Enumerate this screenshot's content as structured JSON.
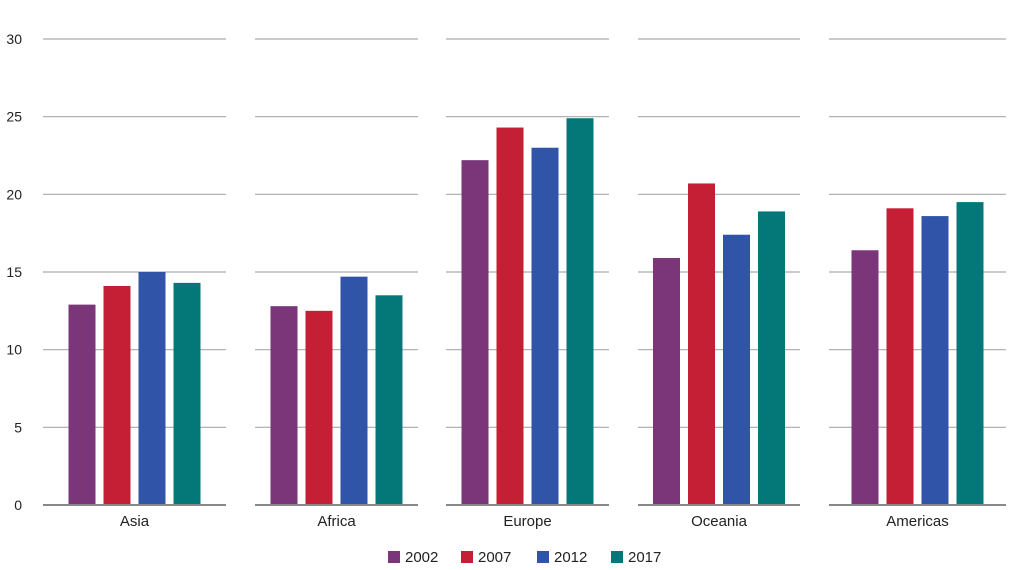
{
  "chart_data": {
    "type": "bar",
    "title": "",
    "xlabel": "",
    "ylabel": "",
    "ylim": [
      0,
      30
    ],
    "yticks": [
      0,
      5,
      10,
      15,
      20,
      25,
      30
    ],
    "grid": true,
    "legend_position": "bottom-center",
    "categories": [
      "Asia",
      "Africa",
      "Europe",
      "Oceania",
      "Americas"
    ],
    "series": [
      {
        "name": "2002",
        "color": "#7b3679",
        "values": [
          12.9,
          12.8,
          22.2,
          15.9,
          16.4
        ]
      },
      {
        "name": "2007",
        "color": "#c41f35",
        "values": [
          14.1,
          12.5,
          24.3,
          20.7,
          19.1
        ]
      },
      {
        "name": "2012",
        "color": "#3054a7",
        "values": [
          15.0,
          14.7,
          23.0,
          17.4,
          18.6
        ]
      },
      {
        "name": "2017",
        "color": "#047878",
        "values": [
          14.3,
          13.5,
          24.9,
          18.9,
          19.5
        ]
      }
    ],
    "gridline_color": "#aaaaaa",
    "axis_color": "#888888"
  }
}
